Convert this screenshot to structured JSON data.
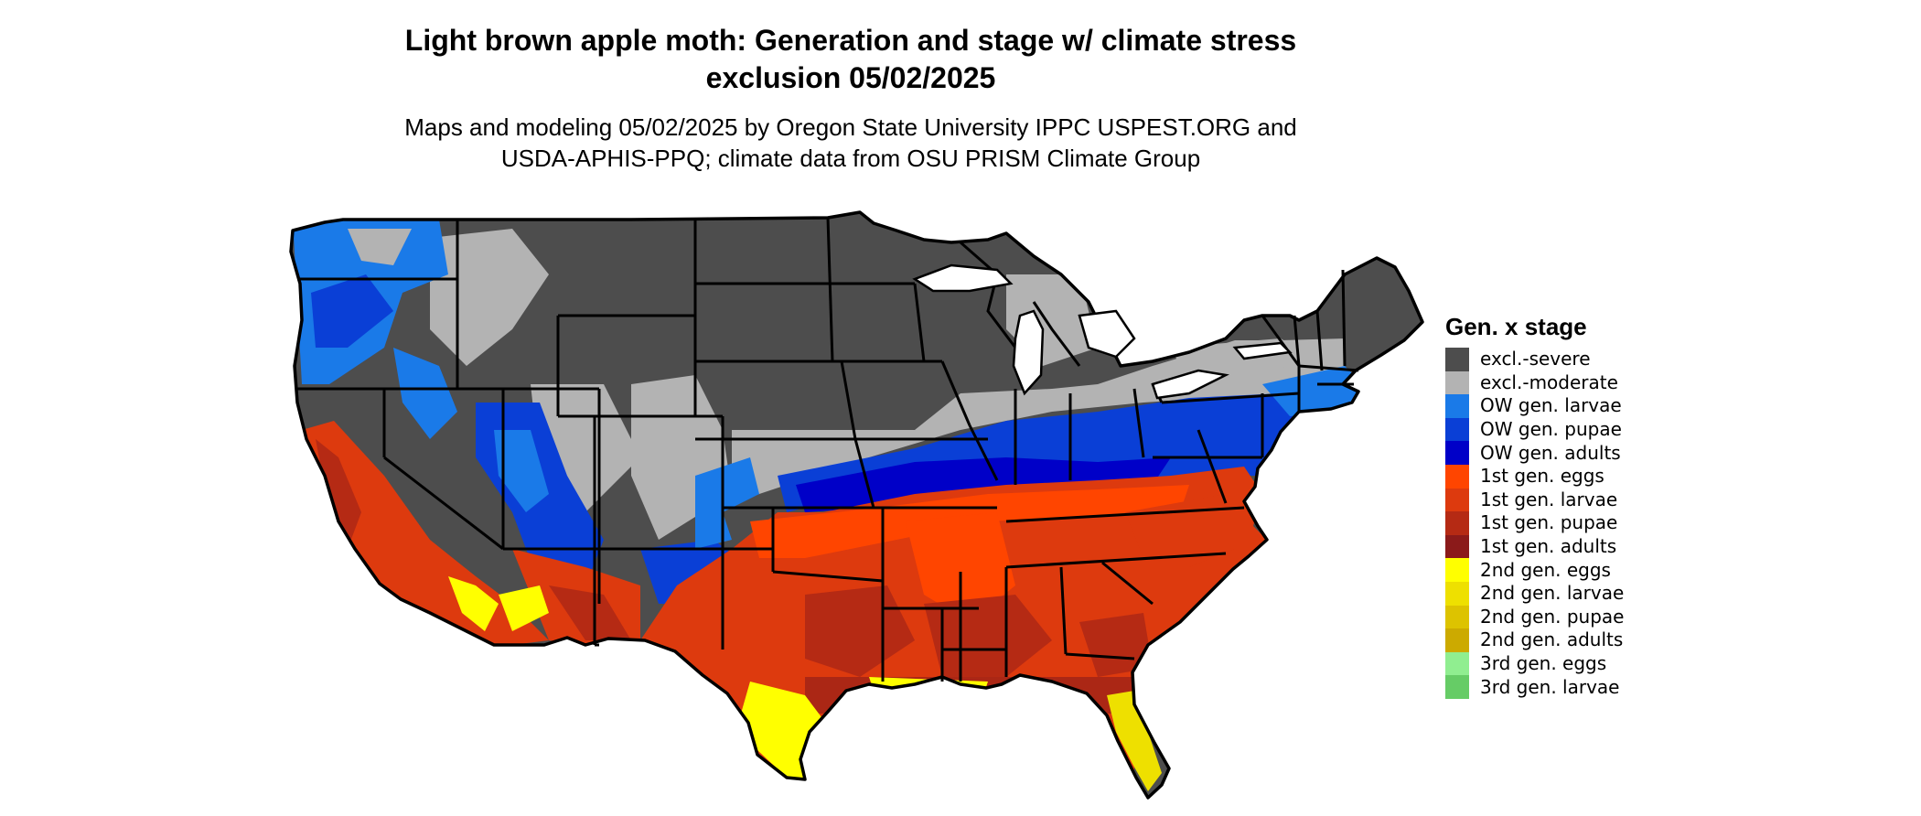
{
  "title": {
    "line1": "Light brown apple moth: Generation and stage w/ climate stress",
    "line2": "exclusion 05/02/2025"
  },
  "subtitle": {
    "line1": "Maps and modeling 05/02/2025 by Oregon State University IPPC USPEST.ORG and",
    "line2": "USDA-APHIS-PPQ; climate data from OSU PRISM Climate Group"
  },
  "legend": {
    "title": "Gen. x stage",
    "items": [
      {
        "label": "excl.-severe",
        "color": "#4d4d4d"
      },
      {
        "label": "excl.-moderate",
        "color": "#b3b3b3"
      },
      {
        "label": "OW gen. larvae",
        "color": "#1a7ae8"
      },
      {
        "label": "OW gen. pupae",
        "color": "#0a3fd6"
      },
      {
        "label": "OW gen. adults",
        "color": "#0000c8"
      },
      {
        "label": "1st gen. eggs",
        "color": "#ff4500"
      },
      {
        "label": "1st gen. larvae",
        "color": "#dd3a0e"
      },
      {
        "label": "1st gen. pupae",
        "color": "#b52a14"
      },
      {
        "label": "1st gen. adults",
        "color": "#8b1a1a"
      },
      {
        "label": "2nd gen. eggs",
        "color": "#ffff00"
      },
      {
        "label": "2nd gen. larvae",
        "color": "#eee000"
      },
      {
        "label": "2nd gen. pupae",
        "color": "#ddc300"
      },
      {
        "label": "2nd gen. adults",
        "color": "#ccaa00"
      },
      {
        "label": "3rd gen. eggs",
        "color": "#90ee90"
      },
      {
        "label": "3rd gen. larvae",
        "color": "#66cc66"
      }
    ]
  }
}
